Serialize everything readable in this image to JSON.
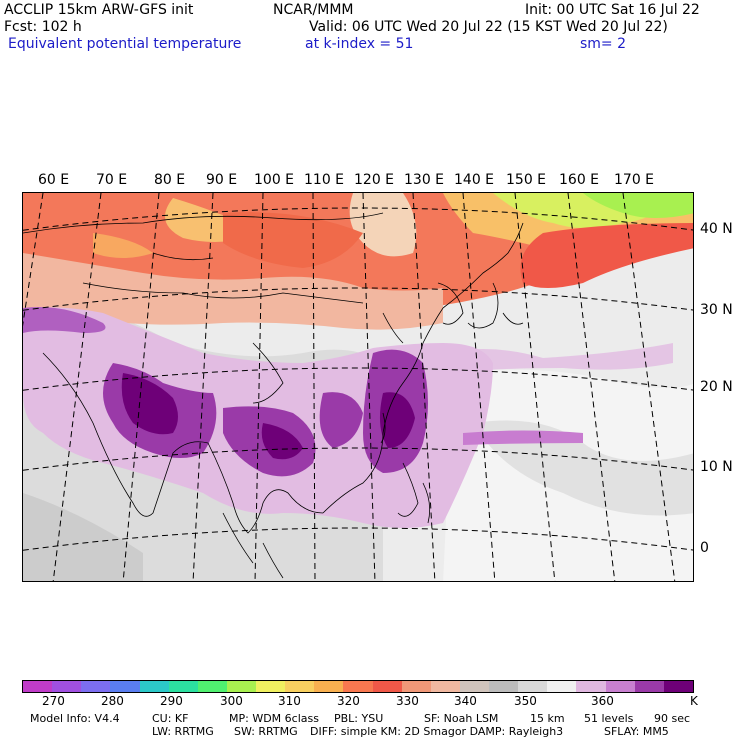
{
  "header": {
    "model": "ACCLIP 15km ARW-GFS init",
    "org": "NCAR/MMM",
    "init": "Init: 00 UTC Sat 16 Jul 22",
    "fcst": "Fcst:  102 h",
    "valid": "Valid: 06 UTC Wed 20 Jul 22 (15 KST Wed 20 Jul 22)",
    "field": "Equivalent potential temperature",
    "level": "at k-index =  51",
    "smooth": "sm= 2"
  },
  "map": {
    "lon_labels": [
      "60 E",
      "70 E",
      "80 E",
      "90 E",
      "100 E",
      "110 E",
      "120 E",
      "130 E",
      "140 E",
      "150 E",
      "160 E",
      "170 E"
    ],
    "lat_labels": [
      "40 N",
      "30 N",
      "20 N",
      "10 N",
      "0"
    ]
  },
  "colorbar": {
    "colors": [
      "#c03cc8",
      "#a050e0",
      "#7c6ef0",
      "#5a7ef0",
      "#2cc8c8",
      "#2ce0a0",
      "#50f070",
      "#a8f050",
      "#f0f060",
      "#f8d060",
      "#f8b050",
      "#f87850",
      "#f05848",
      "#f09878",
      "#f0b8a0",
      "#d0c4bc",
      "#bcbcbc",
      "#d8d8d8",
      "#f0f0f0",
      "#e0b8e0",
      "#c880d0",
      "#9a3aa8",
      "#6e0078"
    ],
    "ticks": [
      "270",
      "280",
      "290",
      "300",
      "310",
      "320",
      "330",
      "340",
      "350",
      "360"
    ],
    "unit": "K"
  },
  "footer": {
    "line1": {
      "info": "Model Info: V4.4",
      "cu": "CU: KF",
      "mp": "MP: WDM 6class",
      "pbl": "PBL: YSU",
      "sf": "SF: Noah LSM",
      "res": "15 km",
      "levels": "51 levels",
      "dt": "90 sec"
    },
    "line2": {
      "lw": "LW: RRTMG",
      "sw": "SW: RRTMG",
      "diff": "DIFF: simple KM: 2D Smagor DAMP: Rayleigh3",
      "sflay": "SFLAY: MM5"
    }
  }
}
